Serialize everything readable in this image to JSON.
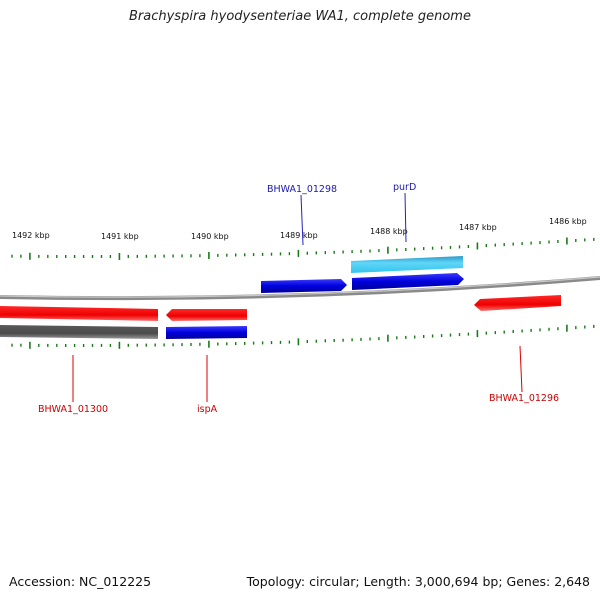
{
  "title": "Brachyspira hyodysenteriae WA1, complete genome",
  "footer": {
    "accession": "Accession: NC_012225",
    "summary": "Topology: circular; Length: 3,000,694 bp; Genes: 2,648"
  },
  "colors": {
    "forward_cds": "#0000dd",
    "forward_gene": "#33c4ee",
    "reverse_cds": "#ee0000",
    "backbone": "#8a8a8a",
    "tick": "#1a7a1a",
    "gene_label_forward": "#1a1aaa",
    "gene_label_reverse": "#cc0000"
  },
  "scale_labels": [
    "1492 kbp",
    "1491 kbp",
    "1490 kbp",
    "1489 kbp",
    "1488 kbp",
    "1487 kbp",
    "1486 kbp"
  ],
  "gene_labels": [
    {
      "text": "BHWA1_01298",
      "strand": "forward"
    },
    {
      "text": "purD",
      "strand": "forward"
    },
    {
      "text": "BHWA1_01300",
      "strand": "reverse"
    },
    {
      "text": "ispA",
      "strand": "reverse"
    },
    {
      "text": "BHWA1_01296",
      "strand": "reverse"
    }
  ]
}
